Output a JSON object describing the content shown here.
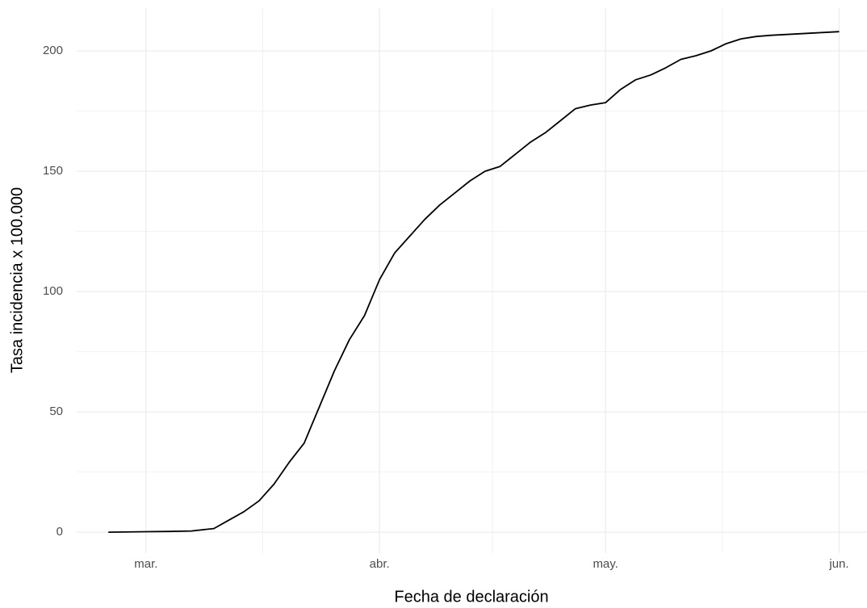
{
  "chart_data": {
    "type": "line",
    "x_label": "Fecha de declaración",
    "y_label": "Tasa incidencia x 100.000",
    "x": [
      -5,
      0,
      3,
      6,
      9,
      11,
      13,
      15,
      17,
      19,
      21,
      23,
      25,
      27,
      29,
      31,
      33,
      35,
      37,
      39,
      41,
      43,
      45,
      47,
      49,
      51,
      53,
      55,
      57,
      59,
      61,
      63,
      65,
      67,
      69,
      71,
      73,
      75,
      77,
      79,
      81,
      83,
      86,
      89,
      92
    ],
    "series": [
      {
        "color": "#000000",
        "values": [
          0,
          0.2,
          0.3,
          0.5,
          1.5,
          5,
          8.5,
          13,
          20,
          29,
          37,
          52,
          67,
          80,
          90,
          105,
          116,
          123,
          130,
          136,
          141,
          146,
          150,
          152,
          157,
          162,
          166,
          171,
          176,
          177.5,
          178.5,
          184,
          188,
          190,
          193,
          196.5,
          198,
          200,
          203,
          205,
          206,
          206.5,
          207,
          207.5,
          208
        ]
      }
    ],
    "xlim": [
      -9.2,
      95.7
    ],
    "xticks": [
      {
        "value": 0,
        "label": "mar."
      },
      {
        "value": 31,
        "label": "abr."
      },
      {
        "value": 61,
        "label": "may."
      },
      {
        "value": 92,
        "label": "jun."
      }
    ],
    "ylim": [
      -8.7,
      217.8
    ],
    "yticks": [
      0,
      50,
      100,
      150,
      200
    ],
    "grid": true
  }
}
